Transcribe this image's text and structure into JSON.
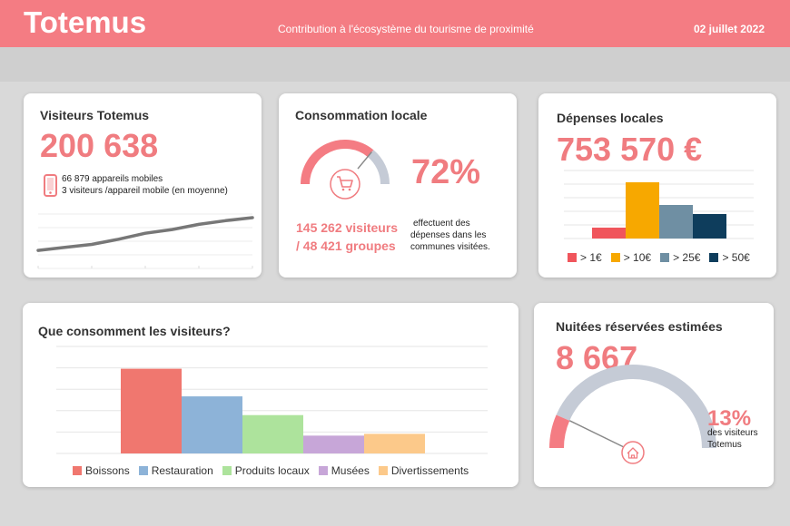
{
  "header": {
    "brand": "Totemus",
    "subtitle": "Contribution à l'écosystème du tourisme de proximité",
    "date": "02 juillet 2022"
  },
  "visitors_card": {
    "title": "Visiteurs Totemus",
    "count": "200 638",
    "devices": "66 879 appareils mobiles",
    "per_device": "3 visiteurs /appareil mobile (en moyenne)",
    "trend": [
      0.12,
      0.2,
      0.28,
      0.42,
      0.58,
      0.68,
      0.82,
      0.92,
      1.0
    ]
  },
  "consumption_card": {
    "title": "Consommation locale",
    "percent": "72%",
    "gauge_fraction": 0.72,
    "visitors_line1": "145 262 visiteurs",
    "visitors_line2": "/ 48 421 groupes",
    "note_line1": "effectuent des",
    "note_line2": "dépenses dans les",
    "note_line3": "communes visitées."
  },
  "spending_card": {
    "title": "Dépenses locales",
    "amount": "753 570 €"
  },
  "what_card": {
    "title": "Que consomment les visiteurs?"
  },
  "nights_card": {
    "title": "Nuitées réservées estimées",
    "count": "8 667",
    "percent": "13%",
    "gauge_fraction": 0.13,
    "note_line1": "des visiteurs",
    "note_line2": "Totemus"
  },
  "colors": {
    "accent": "#f47c83",
    "gauge_grey": "#c5cbd6"
  },
  "chart_data": [
    {
      "type": "bar",
      "title": "Dépenses locales",
      "categories": [
        "> 1€",
        "> 10€",
        "> 25€",
        "> 50€"
      ],
      "values": [
        12,
        62,
        37,
        27
      ],
      "colors": [
        "#f0555c",
        "#f7a800",
        "#6f8fa3",
        "#0e3d5c"
      ],
      "ylim": [
        0,
        75
      ],
      "grid": true,
      "legend": "bottom"
    },
    {
      "type": "bar",
      "title": "Que consomment les visiteurs?",
      "categories": [
        "Boissons",
        "Restauration",
        "Produits locaux",
        "Musées",
        "Divertissements"
      ],
      "values": [
        95,
        64,
        43,
        20,
        22
      ],
      "colors": [
        "#f0776f",
        "#8db3d8",
        "#ade39c",
        "#c7a6d8",
        "#fcc98a"
      ],
      "ylim": [
        0,
        120
      ],
      "grid": true,
      "legend": "bottom"
    }
  ]
}
